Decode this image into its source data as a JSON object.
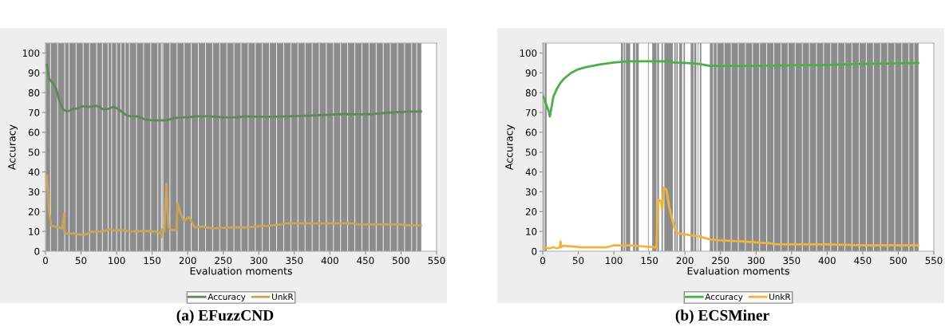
{
  "chart_data": [
    {
      "type": "line",
      "title": "(a) EFuzzCND",
      "xlabel": "Evaluation moments",
      "ylabel": "Accuracy",
      "xlim": [
        0,
        550
      ],
      "ylim": [
        0,
        105
      ],
      "xticks": [
        0,
        50,
        100,
        150,
        200,
        250,
        300,
        350,
        400,
        450,
        500,
        550
      ],
      "yticks": [
        0,
        10,
        20,
        30,
        40,
        50,
        60,
        70,
        80,
        90,
        100
      ],
      "legend": "bottom",
      "grid": false,
      "series": [
        {
          "name": "Accuracy",
          "color": "#5e8a58",
          "x": [
            2,
            5,
            10,
            15,
            20,
            25,
            30,
            35,
            40,
            45,
            50,
            55,
            60,
            65,
            70,
            75,
            80,
            85,
            90,
            95,
            100,
            105,
            110,
            115,
            120,
            130,
            140,
            150,
            160,
            170,
            180,
            190,
            200,
            210,
            230,
            250,
            270,
            280,
            300,
            320,
            340,
            360,
            380,
            400,
            420,
            440,
            460,
            480,
            500,
            528
          ],
          "values": [
            94,
            87,
            85,
            82,
            75,
            71.5,
            70.5,
            71,
            72,
            72,
            73,
            73.2,
            72.8,
            73,
            73.5,
            73,
            71.8,
            71.5,
            72,
            72.8,
            72.2,
            71,
            69.5,
            68.5,
            68,
            68,
            66.5,
            66,
            66,
            66,
            67,
            67.5,
            67.5,
            68,
            68,
            67.5,
            67.5,
            68,
            67.8,
            67.8,
            68,
            68.2,
            68.5,
            68.8,
            69.2,
            69,
            69.2,
            69.8,
            70.3,
            70.5
          ]
        },
        {
          "name": "UnkR",
          "color": "#c9a45a",
          "x": [
            2,
            5,
            8,
            12,
            20,
            24,
            26,
            27,
            30,
            40,
            45,
            55,
            60,
            65,
            80,
            90,
            95,
            110,
            120,
            140,
            155,
            162,
            163,
            164,
            167,
            170,
            173,
            177,
            180,
            184,
            186,
            190,
            195,
            200,
            202,
            210,
            220,
            235,
            260,
            280,
            300,
            320,
            340,
            380,
            400,
            430,
            440,
            480,
            500,
            510,
            528
          ],
          "values": [
            38,
            20,
            13,
            12.5,
            12,
            11.5,
            19,
            9,
            9,
            9,
            8.5,
            8.3,
            9,
            9.8,
            10,
            11,
            10.5,
            10.5,
            10,
            10.2,
            10,
            9,
            7,
            11,
            10,
            34,
            12,
            11,
            10.5,
            11,
            24,
            19,
            15,
            17,
            17,
            12,
            12.5,
            11.5,
            12,
            12,
            12.5,
            13,
            14,
            14,
            14,
            14,
            13.5,
            13.5,
            13.5,
            13,
            13
          ]
        }
      ],
      "bands": [
        {
          "axis": "x",
          "from": 0.5,
          "to": 6.5,
          "color": "#8c8c8c"
        },
        {
          "axis": "x",
          "from": 7.5,
          "to": 16.5,
          "color": "#8c8c8c"
        },
        {
          "axis": "x",
          "from": 17.5,
          "to": 26.5,
          "color": "#8c8c8c"
        },
        {
          "axis": "x",
          "from": 27.5,
          "to": 32.5,
          "color": "#8c8c8c"
        },
        {
          "axis": "x",
          "from": 33.5,
          "to": 42.5,
          "color": "#8c8c8c"
        },
        {
          "axis": "x",
          "from": 43.5,
          "to": 52.5,
          "color": "#8c8c8c"
        },
        {
          "axis": "x",
          "from": 53.5,
          "to": 61.5,
          "color": "#8c8c8c"
        },
        {
          "axis": "x",
          "from": 62.5,
          "to": 71.5,
          "color": "#8c8c8c"
        },
        {
          "axis": "x",
          "from": 72.5,
          "to": 79.5,
          "color": "#8c8c8c"
        },
        {
          "axis": "x",
          "from": 80.5,
          "to": 87.5,
          "color": "#8c8c8c"
        },
        {
          "axis": "x",
          "from": 88.5,
          "to": 92.5,
          "color": "#8c8c8c"
        },
        {
          "axis": "x",
          "from": 93.5,
          "to": 99.5,
          "color": "#8c8c8c"
        },
        {
          "axis": "x",
          "from": 100.5,
          "to": 105.5,
          "color": "#8c8c8c"
        },
        {
          "axis": "x",
          "from": 106.5,
          "to": 111.5,
          "color": "#8c8c8c"
        },
        {
          "axis": "x",
          "from": 112.5,
          "to": 117.5,
          "color": "#8c8c8c"
        },
        {
          "axis": "x",
          "from": 118.5,
          "to": 127.5,
          "color": "#8c8c8c"
        },
        {
          "axis": "x",
          "from": 128.5,
          "to": 137.5,
          "color": "#8c8c8c"
        },
        {
          "axis": "x",
          "from": 138.5,
          "to": 147.5,
          "color": "#8c8c8c"
        },
        {
          "axis": "x",
          "from": 148.5,
          "to": 157.5,
          "color": "#8c8c8c"
        },
        {
          "axis": "x",
          "from": 158.5,
          "to": 162.5,
          "color": "#8c8c8c"
        },
        {
          "axis": "x",
          "from": 163.5,
          "to": 164.5,
          "color": "#8c8c8c"
        },
        {
          "axis": "x",
          "from": 165.5,
          "to": 174.5,
          "color": "#8c8c8c"
        },
        {
          "axis": "x",
          "from": 175.5,
          "to": 184.5,
          "color": "#8c8c8c"
        },
        {
          "axis": "x",
          "from": 185.5,
          "to": 194.5,
          "color": "#8c8c8c"
        },
        {
          "axis": "x",
          "from": 195.5,
          "to": 204.5,
          "color": "#8c8c8c"
        },
        {
          "axis": "x",
          "from": 205.5,
          "to": 214.5,
          "color": "#8c8c8c"
        },
        {
          "axis": "x",
          "from": 215.5,
          "to": 224.5,
          "color": "#8c8c8c"
        },
        {
          "axis": "x",
          "from": 225.5,
          "to": 234.5,
          "color": "#8c8c8c"
        },
        {
          "axis": "x",
          "from": 235.5,
          "to": 244.5,
          "color": "#8c8c8c"
        },
        {
          "axis": "x",
          "from": 245.5,
          "to": 254.5,
          "color": "#8c8c8c"
        },
        {
          "axis": "x",
          "from": 255.5,
          "to": 264.5,
          "color": "#8c8c8c"
        },
        {
          "axis": "x",
          "from": 265.5,
          "to": 274.5,
          "color": "#8c8c8c"
        },
        {
          "axis": "x",
          "from": 275.5,
          "to": 284.5,
          "color": "#8c8c8c"
        },
        {
          "axis": "x",
          "from": 285.5,
          "to": 294.5,
          "color": "#8c8c8c"
        },
        {
          "axis": "x",
          "from": 295.5,
          "to": 304.5,
          "color": "#8c8c8c"
        },
        {
          "axis": "x",
          "from": 305.5,
          "to": 314.5,
          "color": "#8c8c8c"
        },
        {
          "axis": "x",
          "from": 315.5,
          "to": 324.5,
          "color": "#8c8c8c"
        },
        {
          "axis": "x",
          "from": 325.5,
          "to": 334.5,
          "color": "#8c8c8c"
        },
        {
          "axis": "x",
          "from": 335.5,
          "to": 344.5,
          "color": "#8c8c8c"
        },
        {
          "axis": "x",
          "from": 345.5,
          "to": 354.5,
          "color": "#8c8c8c"
        },
        {
          "axis": "x",
          "from": 355.5,
          "to": 364.5,
          "color": "#8c8c8c"
        },
        {
          "axis": "x",
          "from": 365.5,
          "to": 374.5,
          "color": "#8c8c8c"
        },
        {
          "axis": "x",
          "from": 375.5,
          "to": 384.5,
          "color": "#8c8c8c"
        },
        {
          "axis": "x",
          "from": 385.5,
          "to": 394.5,
          "color": "#8c8c8c"
        },
        {
          "axis": "x",
          "from": 395.5,
          "to": 404.5,
          "color": "#8c8c8c"
        },
        {
          "axis": "x",
          "from": 405.5,
          "to": 414.5,
          "color": "#8c8c8c"
        },
        {
          "axis": "x",
          "from": 415.5,
          "to": 424.5,
          "color": "#8c8c8c"
        },
        {
          "axis": "x",
          "from": 425.5,
          "to": 434.5,
          "color": "#8c8c8c"
        },
        {
          "axis": "x",
          "from": 435.5,
          "to": 444.5,
          "color": "#8c8c8c"
        },
        {
          "axis": "x",
          "from": 445.5,
          "to": 454.5,
          "color": "#8c8c8c"
        },
        {
          "axis": "x",
          "from": 455.5,
          "to": 464.5,
          "color": "#8c8c8c"
        },
        {
          "axis": "x",
          "from": 465.5,
          "to": 474.5,
          "color": "#8c8c8c"
        },
        {
          "axis": "x",
          "from": 475.5,
          "to": 484.5,
          "color": "#8c8c8c"
        },
        {
          "axis": "x",
          "from": 485.5,
          "to": 494.5,
          "color": "#8c8c8c"
        },
        {
          "axis": "x",
          "from": 495.5,
          "to": 504.5,
          "color": "#8c8c8c"
        },
        {
          "axis": "x",
          "from": 505.5,
          "to": 514.5,
          "color": "#8c8c8c"
        },
        {
          "axis": "x",
          "from": 515.5,
          "to": 521.5,
          "color": "#8c8c8c"
        },
        {
          "axis": "x",
          "from": 522.5,
          "to": 528.5,
          "color": "#8c8c8c"
        }
      ]
    },
    {
      "type": "line",
      "title": "(b) ECSMiner",
      "xlabel": "Evaluation moments",
      "ylabel": "Accuracy",
      "xlim": [
        0,
        550
      ],
      "ylim": [
        0,
        105
      ],
      "xticks": [
        0,
        50,
        100,
        150,
        200,
        250,
        300,
        350,
        400,
        450,
        500,
        550
      ],
      "yticks": [
        0,
        10,
        20,
        30,
        40,
        50,
        60,
        70,
        80,
        90,
        100
      ],
      "legend": "bottom",
      "grid": false,
      "series": [
        {
          "name": "Accuracy",
          "color": "#4caf45",
          "x": [
            1,
            5,
            9,
            10,
            12,
            15,
            20,
            25,
            30,
            40,
            50,
            60,
            70,
            80,
            90,
            100,
            110,
            120,
            150,
            175,
            185,
            200,
            220,
            235,
            300,
            350,
            400,
            450,
            500,
            528
          ],
          "values": [
            78,
            74,
            70,
            68,
            72,
            78,
            82,
            85,
            87,
            90,
            91.8,
            92.8,
            93.5,
            94.2,
            94.7,
            95.2,
            95.5,
            95.8,
            95.8,
            95.8,
            95.2,
            95,
            94.5,
            93.5,
            93.5,
            93.8,
            94,
            94.5,
            94.8,
            95
          ]
        },
        {
          "name": "UnkR",
          "color": "#f0b43c",
          "x": [
            1,
            10,
            15,
            20,
            24,
            25,
            26,
            28,
            40,
            55,
            90,
            95,
            100,
            120,
            130,
            140,
            160,
            162,
            166,
            168,
            170,
            174,
            178,
            185,
            190,
            200,
            210,
            220,
            235,
            250,
            280,
            300,
            320,
            330,
            400,
            450,
            528
          ],
          "values": [
            2,
            1.5,
            2,
            1.5,
            2,
            5,
            2,
            2.8,
            2.5,
            2,
            2,
            2.5,
            3,
            3,
            2.8,
            2.5,
            2,
            26,
            25.5,
            21,
            32,
            31,
            22,
            12,
            9,
            8.5,
            8,
            7.5,
            6,
            5.5,
            5,
            4.5,
            4,
            3.5,
            3.5,
            3,
            3
          ]
        }
      ],
      "bands": [
        {
          "axis": "x",
          "from": 1,
          "to": 2,
          "color": "#8c8c8c"
        },
        {
          "axis": "x",
          "from": 3,
          "to": 5.5,
          "color": "#8c8c8c"
        },
        {
          "axis": "x",
          "from": 110,
          "to": 113,
          "color": "#8c8c8c"
        },
        {
          "axis": "x",
          "from": 114,
          "to": 116,
          "color": "#8c8c8c"
        },
        {
          "axis": "x",
          "from": 117,
          "to": 123,
          "color": "#8c8c8c"
        },
        {
          "axis": "x",
          "from": 127,
          "to": 130,
          "color": "#8c8c8c"
        },
        {
          "axis": "x",
          "from": 131,
          "to": 135,
          "color": "#8c8c8c"
        },
        {
          "axis": "x",
          "from": 148,
          "to": 149,
          "color": "#8c8c8c"
        },
        {
          "axis": "x",
          "from": 154,
          "to": 160,
          "color": "#8c8c8c"
        },
        {
          "axis": "x",
          "from": 161,
          "to": 163.5,
          "color": "#8c8c8c"
        },
        {
          "axis": "x",
          "from": 167,
          "to": 169,
          "color": "#8c8c8c"
        },
        {
          "axis": "x",
          "from": 171,
          "to": 183,
          "color": "#8c8c8c"
        },
        {
          "axis": "x",
          "from": 185,
          "to": 187,
          "color": "#8c8c8c"
        },
        {
          "axis": "x",
          "from": 188,
          "to": 190,
          "color": "#8c8c8c"
        },
        {
          "axis": "x",
          "from": 192,
          "to": 196,
          "color": "#8c8c8c"
        },
        {
          "axis": "x",
          "from": 198,
          "to": 200,
          "color": "#8c8c8c"
        },
        {
          "axis": "x",
          "from": 208,
          "to": 212,
          "color": "#8c8c8c"
        },
        {
          "axis": "x",
          "from": 213,
          "to": 216,
          "color": "#8c8c8c"
        },
        {
          "axis": "x",
          "from": 218,
          "to": 219,
          "color": "#8c8c8c"
        },
        {
          "axis": "x",
          "from": 221,
          "to": 223,
          "color": "#8c8c8c"
        },
        {
          "axis": "x",
          "from": 235,
          "to": 239.5,
          "color": "#8c8c8c"
        },
        {
          "axis": "x",
          "from": 240.5,
          "to": 244.5,
          "color": "#8c8c8c"
        },
        {
          "axis": "x",
          "from": 245.5,
          "to": 254.5,
          "color": "#8c8c8c"
        },
        {
          "axis": "x",
          "from": 255.5,
          "to": 264.5,
          "color": "#8c8c8c"
        },
        {
          "axis": "x",
          "from": 265.5,
          "to": 274.5,
          "color": "#8c8c8c"
        },
        {
          "axis": "x",
          "from": 275.5,
          "to": 284.5,
          "color": "#8c8c8c"
        },
        {
          "axis": "x",
          "from": 285.5,
          "to": 294.5,
          "color": "#8c8c8c"
        },
        {
          "axis": "x",
          "from": 295.5,
          "to": 304.5,
          "color": "#8c8c8c"
        },
        {
          "axis": "x",
          "from": 305.5,
          "to": 314.5,
          "color": "#8c8c8c"
        },
        {
          "axis": "x",
          "from": 315.5,
          "to": 324.5,
          "color": "#8c8c8c"
        },
        {
          "axis": "x",
          "from": 325.5,
          "to": 334.5,
          "color": "#8c8c8c"
        },
        {
          "axis": "x",
          "from": 335.5,
          "to": 344.5,
          "color": "#8c8c8c"
        },
        {
          "axis": "x",
          "from": 345.5,
          "to": 354.5,
          "color": "#8c8c8c"
        },
        {
          "axis": "x",
          "from": 355.5,
          "to": 364.5,
          "color": "#8c8c8c"
        },
        {
          "axis": "x",
          "from": 365.5,
          "to": 374.5,
          "color": "#8c8c8c"
        },
        {
          "axis": "x",
          "from": 375.5,
          "to": 384.5,
          "color": "#8c8c8c"
        },
        {
          "axis": "x",
          "from": 385.5,
          "to": 394.5,
          "color": "#8c8c8c"
        },
        {
          "axis": "x",
          "from": 395.5,
          "to": 404.5,
          "color": "#8c8c8c"
        },
        {
          "axis": "x",
          "from": 405.5,
          "to": 414.5,
          "color": "#8c8c8c"
        },
        {
          "axis": "x",
          "from": 415.5,
          "to": 424.5,
          "color": "#8c8c8c"
        },
        {
          "axis": "x",
          "from": 425.5,
          "to": 434.5,
          "color": "#8c8c8c"
        },
        {
          "axis": "x",
          "from": 435.5,
          "to": 444.5,
          "color": "#8c8c8c"
        },
        {
          "axis": "x",
          "from": 445.5,
          "to": 454.5,
          "color": "#8c8c8c"
        },
        {
          "axis": "x",
          "from": 455.5,
          "to": 464.5,
          "color": "#8c8c8c"
        },
        {
          "axis": "x",
          "from": 465.5,
          "to": 474.5,
          "color": "#8c8c8c"
        },
        {
          "axis": "x",
          "from": 475.5,
          "to": 484.5,
          "color": "#8c8c8c"
        },
        {
          "axis": "x",
          "from": 485.5,
          "to": 494.5,
          "color": "#8c8c8c"
        },
        {
          "axis": "x",
          "from": 495.5,
          "to": 504.5,
          "color": "#8c8c8c"
        },
        {
          "axis": "x",
          "from": 505.5,
          "to": 514.5,
          "color": "#8c8c8c"
        },
        {
          "axis": "x",
          "from": 515.5,
          "to": 521.5,
          "color": "#8c8c8c"
        },
        {
          "axis": "x",
          "from": 522.5,
          "to": 528.5,
          "color": "#8c8c8c"
        }
      ]
    }
  ]
}
